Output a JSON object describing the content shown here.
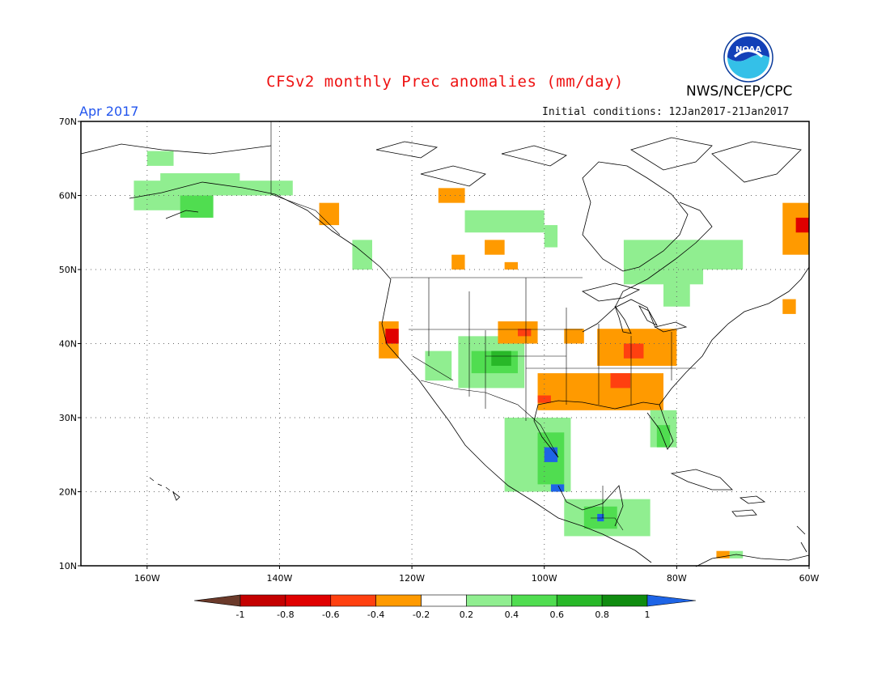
{
  "header": {
    "title": "CFSv2 monthly Prec anomalies (mm/day)",
    "agency": "NWS/NCEP/CPC",
    "logo_text": "NOAA",
    "period": "Apr 2017",
    "initial_conditions": "Initial conditions: 12Jan2017-21Jan2017"
  },
  "map": {
    "lat_labels": [
      "70N",
      "60N",
      "50N",
      "40N",
      "30N",
      "20N",
      "10N"
    ],
    "lon_labels": [
      "160W",
      "140W",
      "120W",
      "100W",
      "80W",
      "60W"
    ],
    "grid": "dotted",
    "lon_range": [
      -170,
      -60
    ],
    "lat_range": [
      10,
      70
    ]
  },
  "legend": {
    "labels": [
      "-1",
      "-0.8",
      "-0.6",
      "-0.4",
      "-0.2",
      "0.2",
      "0.4",
      "0.6",
      "0.8",
      "1"
    ],
    "colors": [
      "#6b3a2a",
      "#c40000",
      "#e00000",
      "#ff4010",
      "#ff9a00",
      "#ffffff",
      "#90ee90",
      "#50dd50",
      "#28b828",
      "#108c10",
      "#1e64e6"
    ]
  },
  "anomalies": {
    "colors": {
      "pos02": "#90ee90",
      "pos04": "#50dd50",
      "pos06": "#28b828",
      "pos08": "#108c10",
      "pos1": "#1e64e6",
      "neg02": "#ff9a00",
      "neg04": "#ff4010",
      "neg06": "#e00000"
    },
    "regions": [
      {
        "level": "pos02",
        "lon": [
          -162,
          -152
        ],
        "lat": [
          58,
          62
        ]
      },
      {
        "level": "pos02",
        "lon": [
          -158,
          -146
        ],
        "lat": [
          60,
          63
        ]
      },
      {
        "level": "pos02",
        "lon": [
          -148,
          -138
        ],
        "lat": [
          60,
          62
        ]
      },
      {
        "level": "pos04",
        "lon": [
          -155,
          -150
        ],
        "lat": [
          57,
          60
        ]
      },
      {
        "level": "pos02",
        "lon": [
          -160,
          -156
        ],
        "lat": [
          64,
          66
        ]
      },
      {
        "level": "neg02",
        "lon": [
          -134,
          -131
        ],
        "lat": [
          56,
          59
        ]
      },
      {
        "level": "pos02",
        "lon": [
          -129,
          -126
        ],
        "lat": [
          50,
          54
        ]
      },
      {
        "level": "neg02",
        "lon": [
          -116,
          -112
        ],
        "lat": [
          59,
          61
        ]
      },
      {
        "level": "pos02",
        "lon": [
          -112,
          -100
        ],
        "lat": [
          55,
          58
        ]
      },
      {
        "level": "pos02",
        "lon": [
          -100,
          -98
        ],
        "lat": [
          53,
          56
        ]
      },
      {
        "level": "neg02",
        "lon": [
          -109,
          -106
        ],
        "lat": [
          52,
          54
        ]
      },
      {
        "level": "neg02",
        "lon": [
          -114,
          -112
        ],
        "lat": [
          50,
          52
        ]
      },
      {
        "level": "neg02",
        "lon": [
          -106,
          -104
        ],
        "lat": [
          50,
          51
        ]
      },
      {
        "level": "pos02",
        "lon": [
          -88,
          -76
        ],
        "lat": [
          48,
          54
        ]
      },
      {
        "level": "pos02",
        "lon": [
          -78,
          -70
        ],
        "lat": [
          50,
          54
        ]
      },
      {
        "level": "pos02",
        "lon": [
          -82,
          -78
        ],
        "lat": [
          45,
          49
        ]
      },
      {
        "level": "neg02",
        "lon": [
          -64,
          -60
        ],
        "lat": [
          52,
          59
        ]
      },
      {
        "level": "neg06",
        "lon": [
          -62,
          -60
        ],
        "lat": [
          55,
          57
        ]
      },
      {
        "level": "neg02",
        "lon": [
          -125,
          -122
        ],
        "lat": [
          38,
          43
        ]
      },
      {
        "level": "neg06",
        "lon": [
          -124,
          -122
        ],
        "lat": [
          40,
          42
        ]
      },
      {
        "level": "pos02",
        "lon": [
          -118,
          -114
        ],
        "lat": [
          35,
          39
        ]
      },
      {
        "level": "pos02",
        "lon": [
          -113,
          -103
        ],
        "lat": [
          34,
          41
        ]
      },
      {
        "level": "pos04",
        "lon": [
          -111,
          -104
        ],
        "lat": [
          36,
          39
        ]
      },
      {
        "level": "pos06",
        "lon": [
          -108,
          -105
        ],
        "lat": [
          37,
          39
        ]
      },
      {
        "level": "neg02",
        "lon": [
          -107,
          -101
        ],
        "lat": [
          40,
          43
        ]
      },
      {
        "level": "neg04",
        "lon": [
          -104,
          -102
        ],
        "lat": [
          41,
          42
        ]
      },
      {
        "level": "neg02",
        "lon": [
          -97,
          -94
        ],
        "lat": [
          40,
          42
        ]
      },
      {
        "level": "neg02",
        "lon": [
          -92,
          -80
        ],
        "lat": [
          37,
          42
        ]
      },
      {
        "level": "neg04",
        "lon": [
          -88,
          -85
        ],
        "lat": [
          38,
          40
        ]
      },
      {
        "level": "neg02",
        "lon": [
          -101,
          -82
        ],
        "lat": [
          31,
          36
        ]
      },
      {
        "level": "neg04",
        "lon": [
          -90,
          -87
        ],
        "lat": [
          34,
          36
        ]
      },
      {
        "level": "neg04",
        "lon": [
          -101,
          -99
        ],
        "lat": [
          32,
          33
        ]
      },
      {
        "level": "pos02",
        "lon": [
          -84,
          -80
        ],
        "lat": [
          26,
          31
        ]
      },
      {
        "level": "pos04",
        "lon": [
          -83,
          -81
        ],
        "lat": [
          26,
          29
        ]
      },
      {
        "level": "pos02",
        "lon": [
          -106,
          -96
        ],
        "lat": [
          20,
          30
        ]
      },
      {
        "level": "pos04",
        "lon": [
          -101,
          -97
        ],
        "lat": [
          21,
          28
        ]
      },
      {
        "level": "pos1",
        "lon": [
          -100,
          -98
        ],
        "lat": [
          24,
          26
        ]
      },
      {
        "level": "pos1",
        "lon": [
          -99,
          -97
        ],
        "lat": [
          20,
          21
        ]
      },
      {
        "level": "pos02",
        "lon": [
          -97,
          -84
        ],
        "lat": [
          14,
          19
        ]
      },
      {
        "level": "pos04",
        "lon": [
          -94,
          -89
        ],
        "lat": [
          15,
          18
        ]
      },
      {
        "level": "pos1",
        "lon": [
          -92,
          -91
        ],
        "lat": [
          16,
          17
        ]
      },
      {
        "level": "neg02",
        "lon": [
          -74,
          -72
        ],
        "lat": [
          11,
          12
        ]
      },
      {
        "level": "pos02",
        "lon": [
          -72,
          -70
        ],
        "lat": [
          11,
          12
        ]
      },
      {
        "level": "neg02",
        "lon": [
          -64,
          -62
        ],
        "lat": [
          44,
          46
        ]
      }
    ]
  }
}
